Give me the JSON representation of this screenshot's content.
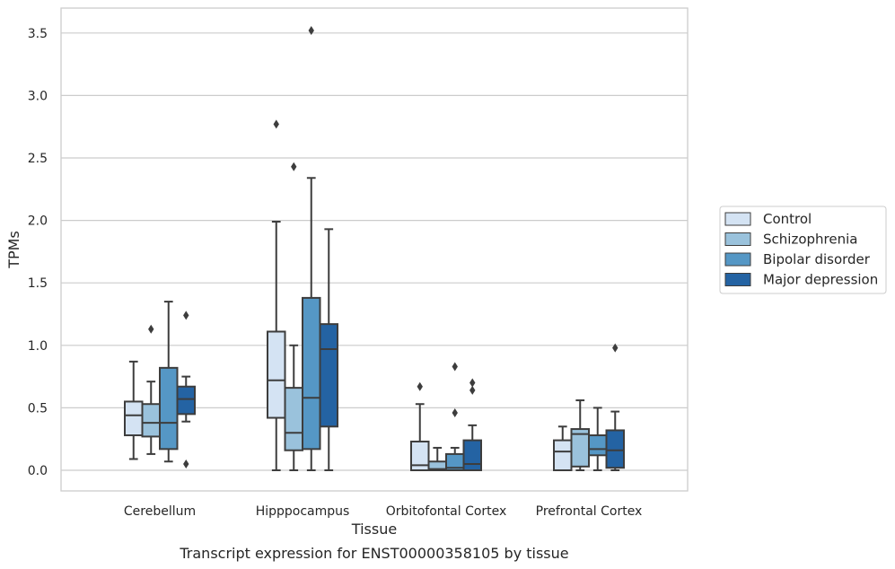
{
  "chart_data": {
    "type": "box",
    "xlabel": "Tissue",
    "ylabel": "TPMs",
    "caption": "Transcript expression for ENST00000358105 by tissue",
    "ylim": [
      -0.17,
      3.7
    ],
    "yticks": [
      "0.0",
      "0.5",
      "1.0",
      "1.5",
      "2.0",
      "2.5",
      "3.0",
      "3.5"
    ],
    "ytick_values": [
      0,
      0.5,
      1.0,
      1.5,
      2.0,
      2.5,
      3.0,
      3.5
    ],
    "grid": "horizontal",
    "legend_position": "right",
    "categories": [
      "Cerebellum",
      "Hipppocampus",
      "Orbitofontal Cortex",
      "Prefrontal Cortex"
    ],
    "series": [
      {
        "name": "Control",
        "color": "#d4e3f3",
        "boxes": [
          {
            "whislo": 0.09,
            "q1": 0.28,
            "med": 0.44,
            "q3": 0.55,
            "whishi": 0.87,
            "fliers": []
          },
          {
            "whislo": 0.0,
            "q1": 0.42,
            "med": 0.72,
            "q3": 1.11,
            "whishi": 1.99,
            "fliers": [
              2.77
            ]
          },
          {
            "whislo": 0.0,
            "q1": 0.0,
            "med": 0.04,
            "q3": 0.23,
            "whishi": 0.53,
            "fliers": [
              0.67
            ]
          },
          {
            "whislo": 0.0,
            "q1": 0.0,
            "med": 0.15,
            "q3": 0.24,
            "whishi": 0.35,
            "fliers": []
          }
        ]
      },
      {
        "name": "Schizophrenia",
        "color": "#9ac2dc",
        "boxes": [
          {
            "whislo": 0.13,
            "q1": 0.27,
            "med": 0.38,
            "q3": 0.53,
            "whishi": 0.71,
            "fliers": [
              1.13
            ]
          },
          {
            "whislo": 0.0,
            "q1": 0.16,
            "med": 0.3,
            "q3": 0.66,
            "whishi": 1.0,
            "fliers": [
              2.43
            ]
          },
          {
            "whislo": 0.0,
            "q1": 0.0,
            "med": 0.01,
            "q3": 0.07,
            "whishi": 0.18,
            "fliers": []
          },
          {
            "whislo": 0.0,
            "q1": 0.03,
            "med": 0.29,
            "q3": 0.33,
            "whishi": 0.56,
            "fliers": []
          }
        ]
      },
      {
        "name": "Bipolar disorder",
        "color": "#5597c5",
        "boxes": [
          {
            "whislo": 0.07,
            "q1": 0.17,
            "med": 0.38,
            "q3": 0.82,
            "whishi": 1.35,
            "fliers": []
          },
          {
            "whislo": 0.0,
            "q1": 0.17,
            "med": 0.58,
            "q3": 1.38,
            "whishi": 2.34,
            "fliers": [
              3.52
            ]
          },
          {
            "whislo": 0.0,
            "q1": 0.0,
            "med": 0.02,
            "q3": 0.13,
            "whishi": 0.18,
            "fliers": [
              0.46,
              0.83
            ]
          },
          {
            "whislo": 0.0,
            "q1": 0.12,
            "med": 0.17,
            "q3": 0.28,
            "whishi": 0.5,
            "fliers": []
          }
        ]
      },
      {
        "name": "Major depression",
        "color": "#2463a3",
        "boxes": [
          {
            "whislo": 0.39,
            "q1": 0.45,
            "med": 0.57,
            "q3": 0.67,
            "whishi": 0.75,
            "fliers": [
              0.05,
              1.24
            ]
          },
          {
            "whislo": 0.0,
            "q1": 0.35,
            "med": 0.97,
            "q3": 1.17,
            "whishi": 1.93,
            "fliers": []
          },
          {
            "whislo": 0.0,
            "q1": 0.0,
            "med": 0.05,
            "q3": 0.24,
            "whishi": 0.36,
            "fliers": [
              0.64,
              0.7
            ]
          },
          {
            "whislo": 0.0,
            "q1": 0.02,
            "med": 0.16,
            "q3": 0.32,
            "whishi": 0.47,
            "fliers": [
              0.98
            ]
          }
        ]
      }
    ]
  }
}
